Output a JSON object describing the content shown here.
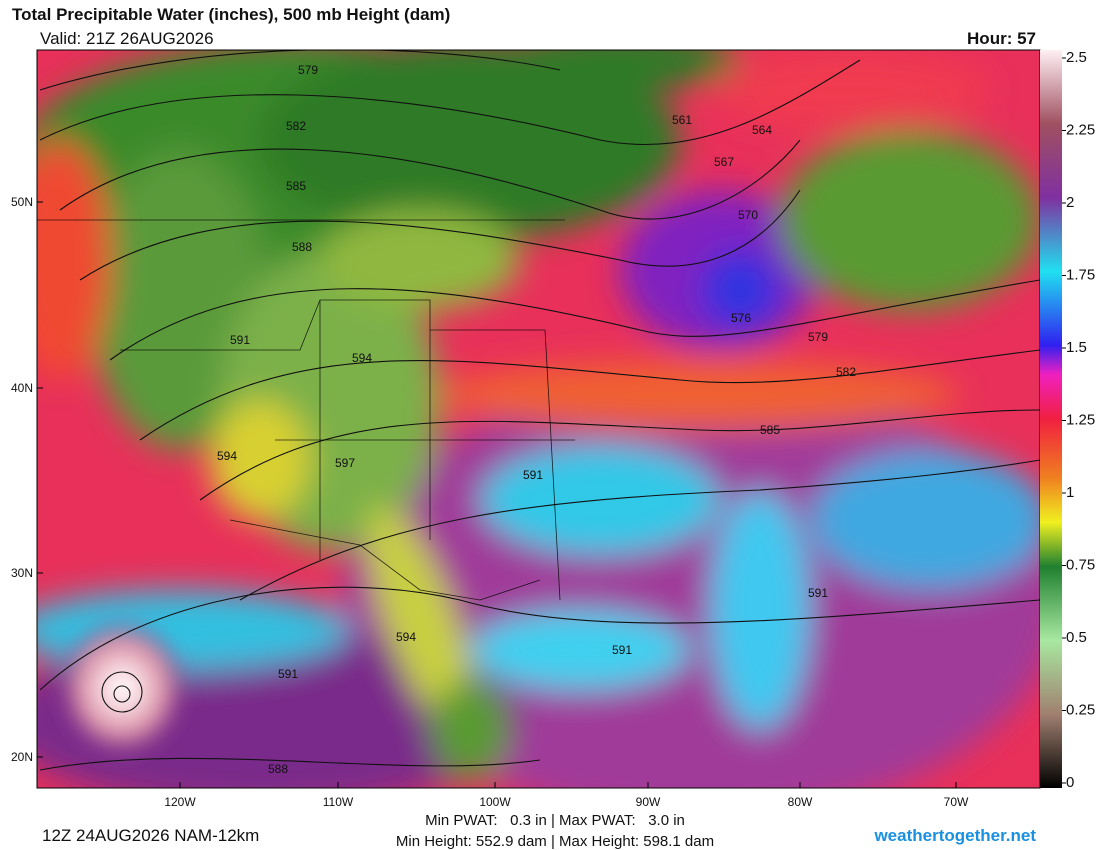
{
  "header": {
    "title": "Total Precipitable Water (inches), 500 mb Height (dam)",
    "valid": "Valid: 21Z 26AUG2026",
    "hour": "Hour: 57"
  },
  "map": {
    "latitude_labels": [
      "50N",
      "40N",
      "30N",
      "20N"
    ],
    "longitude_labels": [
      "120W",
      "110W",
      "100W",
      "90W",
      "80W",
      "70W"
    ],
    "contour_labels": [
      "579",
      "582",
      "585",
      "588",
      "591",
      "594",
      "594",
      "597",
      "591",
      "561",
      "564",
      "567",
      "570",
      "576",
      "579",
      "582",
      "585",
      "591",
      "591",
      "594",
      "591",
      "588"
    ]
  },
  "colorbar": {
    "ticks": [
      0,
      0.25,
      0.5,
      0.75,
      1,
      1.25,
      1.5,
      1.75,
      2,
      2.25,
      2.5
    ]
  },
  "footer": {
    "run": "12Z 24AUG2026 NAM-12km",
    "pwat": "Min PWAT:   0.3 in | Max PWAT:   3.0 in",
    "height": "Min Height: 552.9 dam | Max Height: 598.1 dam",
    "credit": "weathertogether.net"
  }
}
